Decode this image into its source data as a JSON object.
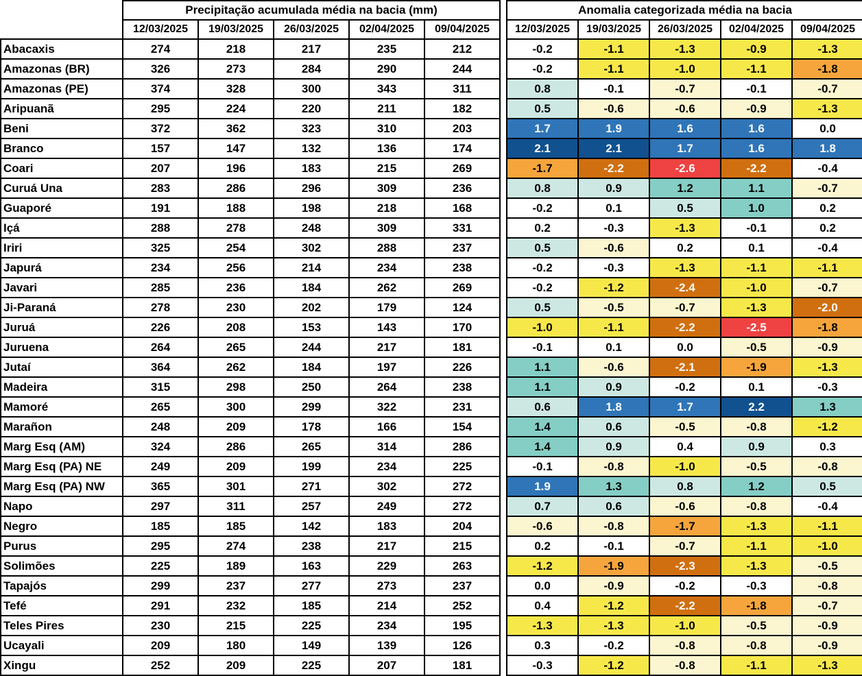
{
  "chart_data": {
    "type": "table",
    "sections": [
      {
        "title": "Precipitação acumulada média na bacia (mm)",
        "dates": [
          "12/03/2025",
          "19/03/2025",
          "26/03/2025",
          "02/04/2025",
          "09/04/2025"
        ],
        "values": [
          [
            274,
            218,
            217,
            235,
            212
          ],
          [
            326,
            273,
            284,
            290,
            244
          ],
          [
            374,
            328,
            300,
            343,
            311
          ],
          [
            295,
            224,
            220,
            211,
            182
          ],
          [
            372,
            362,
            323,
            310,
            203
          ],
          [
            157,
            147,
            132,
            136,
            174
          ],
          [
            207,
            196,
            183,
            215,
            269
          ],
          [
            283,
            286,
            296,
            309,
            236
          ],
          [
            191,
            188,
            198,
            218,
            168
          ],
          [
            288,
            278,
            248,
            309,
            331
          ],
          [
            325,
            254,
            302,
            288,
            237
          ],
          [
            234,
            256,
            214,
            234,
            238
          ],
          [
            285,
            236,
            184,
            262,
            269
          ],
          [
            278,
            230,
            202,
            179,
            124
          ],
          [
            226,
            208,
            153,
            143,
            170
          ],
          [
            264,
            265,
            244,
            217,
            181
          ],
          [
            364,
            262,
            184,
            197,
            226
          ],
          [
            315,
            298,
            250,
            264,
            238
          ],
          [
            265,
            300,
            299,
            322,
            231
          ],
          [
            248,
            209,
            178,
            166,
            154
          ],
          [
            324,
            286,
            265,
            314,
            286
          ],
          [
            249,
            209,
            199,
            234,
            225
          ],
          [
            365,
            301,
            271,
            302,
            272
          ],
          [
            297,
            311,
            257,
            249,
            272
          ],
          [
            185,
            185,
            142,
            183,
            204
          ],
          [
            295,
            274,
            238,
            217,
            215
          ],
          [
            225,
            189,
            163,
            229,
            263
          ],
          [
            299,
            237,
            277,
            273,
            237
          ],
          [
            291,
            232,
            185,
            214,
            252
          ],
          [
            230,
            215,
            225,
            234,
            195
          ],
          [
            209,
            180,
            149,
            139,
            126
          ],
          [
            252,
            209,
            225,
            207,
            181
          ]
        ]
      },
      {
        "title": "Anomalia categorizada média na bacia",
        "dates": [
          "12/03/2025",
          "19/03/2025",
          "26/03/2025",
          "02/04/2025",
          "09/04/2025"
        ],
        "values": [
          [
            "-0.2",
            "-1.1",
            "-1.3",
            "-0.9",
            "-1.3"
          ],
          [
            "-0.2",
            "-1.1",
            "-1.0",
            "-1.1",
            "-1.8"
          ],
          [
            "0.8",
            "-0.1",
            "-0.7",
            "-0.1",
            "-0.7"
          ],
          [
            "0.5",
            "-0.6",
            "-0.6",
            "-0.9",
            "-1.3"
          ],
          [
            "1.7",
            "1.9",
            "1.6",
            "1.6",
            "0.0"
          ],
          [
            "2.1",
            "2.1",
            "1.7",
            "1.6",
            "1.8"
          ],
          [
            "-1.7",
            "-2.2",
            "-2.6",
            "-2.2",
            "-0.4"
          ],
          [
            "0.8",
            "0.9",
            "1.2",
            "1.1",
            "-0.7"
          ],
          [
            "-0.2",
            "0.1",
            "0.5",
            "1.0",
            "0.2"
          ],
          [
            "0.2",
            "-0.3",
            "-1.3",
            "-0.1",
            "0.2"
          ],
          [
            "0.5",
            "-0.6",
            "0.2",
            "0.1",
            "-0.4"
          ],
          [
            "-0.2",
            "-0.3",
            "-1.3",
            "-1.1",
            "-1.1"
          ],
          [
            "-0.2",
            "-1.2",
            "-2.4",
            "-1.0",
            "-0.7"
          ],
          [
            "0.5",
            "-0.5",
            "-0.7",
            "-1.3",
            "-2.0"
          ],
          [
            "-1.0",
            "-1.1",
            "-2.2",
            "-2.5",
            "-1.8"
          ],
          [
            "-0.1",
            "0.1",
            "0.0",
            "-0.5",
            "-0.9"
          ],
          [
            "1.1",
            "-0.6",
            "-2.1",
            "-1.9",
            "-1.3"
          ],
          [
            "1.1",
            "0.9",
            "-0.2",
            "0.1",
            "-0.3"
          ],
          [
            "0.6",
            "1.8",
            "1.7",
            "2.2",
            "1.3"
          ],
          [
            "1.4",
            "0.6",
            "-0.5",
            "-0.8",
            "-1.2"
          ],
          [
            "1.4",
            "0.9",
            "0.4",
            "0.9",
            "0.3"
          ],
          [
            "-0.1",
            "-0.8",
            "-1.0",
            "-0.5",
            "-0.8"
          ],
          [
            "1.9",
            "1.3",
            "0.8",
            "1.2",
            "0.5"
          ],
          [
            "0.7",
            "0.6",
            "-0.6",
            "-0.8",
            "-0.4"
          ],
          [
            "-0.6",
            "-0.8",
            "-1.7",
            "-1.3",
            "-1.1"
          ],
          [
            "0.2",
            "-0.1",
            "-0.7",
            "-1.1",
            "-1.0"
          ],
          [
            "-1.2",
            "-1.9",
            "-2.3",
            "-1.3",
            "-0.5"
          ],
          [
            "0.0",
            "-0.9",
            "-0.2",
            "-0.3",
            "-0.8"
          ],
          [
            "0.4",
            "-1.2",
            "-2.2",
            "-1.8",
            "-0.7"
          ],
          [
            "-1.3",
            "-1.3",
            "-1.0",
            "-0.5",
            "-0.9"
          ],
          [
            "0.3",
            "-0.2",
            "-0.8",
            "-0.8",
            "-0.9"
          ],
          [
            "-0.3",
            "-1.2",
            "-0.8",
            "-1.1",
            "-1.3"
          ]
        ],
        "cell_colors": [
          [
            "white",
            "yellow",
            "yellow",
            "yellow",
            "yellow"
          ],
          [
            "white",
            "yellow",
            "yellow",
            "yellow",
            "orange"
          ],
          [
            "light-cyan",
            "white",
            "cream",
            "white",
            "cream"
          ],
          [
            "light-cyan",
            "cream",
            "cream",
            "cream",
            "yellow"
          ],
          [
            "blue",
            "blue",
            "blue",
            "blue",
            "white"
          ],
          [
            "dark-blue",
            "dark-blue",
            "blue",
            "blue",
            "blue"
          ],
          [
            "orange",
            "dark-orange",
            "red",
            "dark-orange",
            "white"
          ],
          [
            "light-cyan",
            "light-cyan",
            "teal",
            "teal",
            "cream"
          ],
          [
            "white",
            "white",
            "light-cyan",
            "teal",
            "white"
          ],
          [
            "white",
            "white",
            "yellow",
            "white",
            "white"
          ],
          [
            "light-cyan",
            "cream",
            "white",
            "white",
            "white"
          ],
          [
            "white",
            "white",
            "yellow",
            "yellow",
            "yellow"
          ],
          [
            "white",
            "yellow",
            "dark-orange",
            "yellow",
            "cream"
          ],
          [
            "light-cyan",
            "cream",
            "cream",
            "yellow",
            "dark-orange"
          ],
          [
            "yellow",
            "yellow",
            "dark-orange",
            "red",
            "orange"
          ],
          [
            "white",
            "white",
            "white",
            "cream",
            "cream"
          ],
          [
            "teal",
            "cream",
            "dark-orange",
            "orange",
            "yellow"
          ],
          [
            "teal",
            "light-cyan",
            "white",
            "white",
            "white"
          ],
          [
            "light-cyan",
            "blue",
            "blue",
            "dark-blue",
            "teal"
          ],
          [
            "teal",
            "light-cyan",
            "cream",
            "cream",
            "yellow"
          ],
          [
            "teal",
            "light-cyan",
            "white",
            "light-cyan",
            "white"
          ],
          [
            "white",
            "cream",
            "yellow",
            "cream",
            "cream"
          ],
          [
            "blue",
            "teal",
            "light-cyan",
            "teal",
            "light-cyan"
          ],
          [
            "light-cyan",
            "light-cyan",
            "cream",
            "cream",
            "white"
          ],
          [
            "cream",
            "cream",
            "orange",
            "yellow",
            "yellow"
          ],
          [
            "white",
            "white",
            "cream",
            "yellow",
            "yellow"
          ],
          [
            "yellow",
            "orange",
            "dark-orange",
            "yellow",
            "cream"
          ],
          [
            "white",
            "cream",
            "white",
            "white",
            "cream"
          ],
          [
            "white",
            "yellow",
            "dark-orange",
            "orange",
            "cream"
          ],
          [
            "yellow",
            "yellow",
            "yellow",
            "cream",
            "cream"
          ],
          [
            "white",
            "white",
            "cream",
            "cream",
            "cream"
          ],
          [
            "white",
            "yellow",
            "cream",
            "yellow",
            "yellow"
          ]
        ]
      }
    ],
    "basins": [
      "Abacaxis",
      "Amazonas (BR)",
      "Amazonas (PE)",
      "Aripuanã",
      "Beni",
      "Branco",
      "Coari",
      "Curuá Una",
      "Guaporé",
      "Içá",
      "Iriri",
      "Japurá",
      "Javari",
      "Ji-Paraná",
      "Juruá",
      "Juruena",
      "Jutaí",
      "Madeira",
      "Mamoré",
      "Marañon",
      "Marg Esq (AM)",
      "Marg Esq (PA) NE",
      "Marg Esq (PA) NW",
      "Napo",
      "Negro",
      "Purus",
      "Solimões",
      "Tapajós",
      "Tefé",
      "Teles Pires",
      "Ucayali",
      "Xingu"
    ],
    "color_palette": {
      "white": "#ffffff",
      "cream": "#fbf6cf",
      "yellow": "#f7e84a",
      "orange": "#f6a53c",
      "dark-orange": "#d06f10",
      "red": "#ef4242",
      "light-cyan": "#cde8e3",
      "teal": "#85cec5",
      "blue": "#2f75b8",
      "dark-blue": "#11518f"
    },
    "white_text_categories": [
      "blue",
      "dark-blue",
      "dark-orange",
      "red"
    ]
  }
}
